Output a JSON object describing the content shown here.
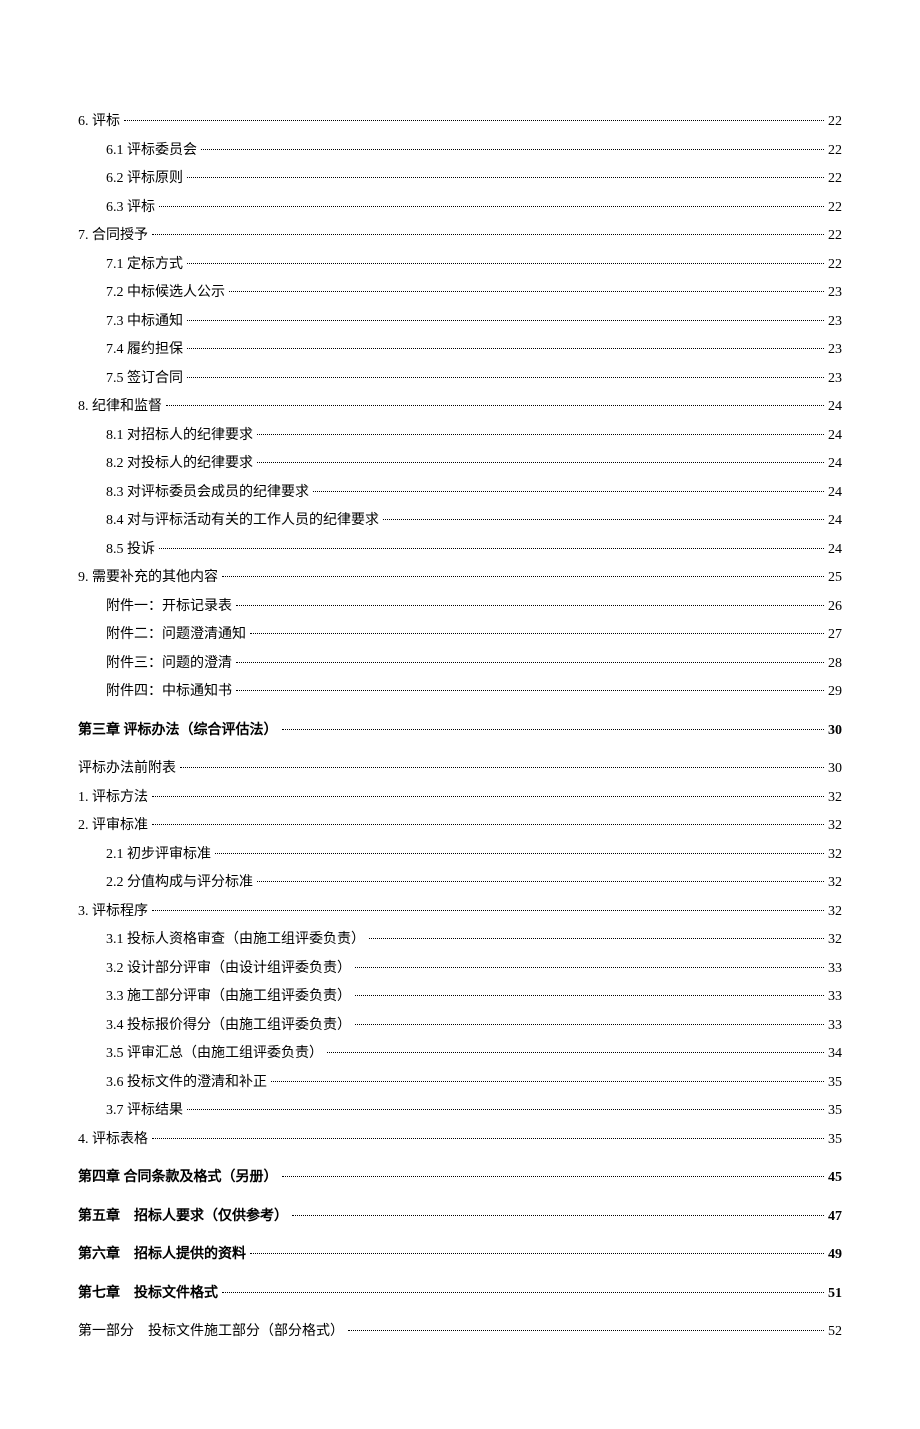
{
  "toc": [
    {
      "label": "6. 评标",
      "page": "22",
      "level": 0,
      "class": ""
    },
    {
      "label": "6.1 评标委员会",
      "page": "22",
      "level": 1,
      "class": ""
    },
    {
      "label": "6.2 评标原则",
      "page": "22",
      "level": 1,
      "class": ""
    },
    {
      "label": "6.3 评标",
      "page": "22",
      "level": 1,
      "class": ""
    },
    {
      "label": "7. 合同授予",
      "page": "22",
      "level": 0,
      "class": ""
    },
    {
      "label": "7.1 定标方式",
      "page": "22",
      "level": 1,
      "class": ""
    },
    {
      "label": "7.2 中标候选人公示",
      "page": "23",
      "level": 1,
      "class": ""
    },
    {
      "label": "7.3 中标通知",
      "page": "23",
      "level": 1,
      "class": ""
    },
    {
      "label": "7.4 履约担保",
      "page": "23",
      "level": 1,
      "class": ""
    },
    {
      "label": "7.5 签订合同",
      "page": "23",
      "level": 1,
      "class": ""
    },
    {
      "label": "8. 纪律和监督",
      "page": "24",
      "level": 0,
      "class": ""
    },
    {
      "label": "8.1 对招标人的纪律要求",
      "page": "24",
      "level": 1,
      "class": ""
    },
    {
      "label": "8.2 对投标人的纪律要求",
      "page": "24",
      "level": 1,
      "class": ""
    },
    {
      "label": "8.3 对评标委员会成员的纪律要求",
      "page": "24",
      "level": 1,
      "class": ""
    },
    {
      "label": "8.4 对与评标活动有关的工作人员的纪律要求",
      "page": "24",
      "level": 1,
      "class": ""
    },
    {
      "label": "8.5 投诉",
      "page": "24",
      "level": 1,
      "class": ""
    },
    {
      "label": "9. 需要补充的其他内容",
      "page": "25",
      "level": 0,
      "class": ""
    },
    {
      "label": "附件一：开标记录表",
      "page": "26",
      "level": 1,
      "class": ""
    },
    {
      "label": "附件二：问题澄清通知",
      "page": "27",
      "level": 1,
      "class": ""
    },
    {
      "label": "附件三：问题的澄清",
      "page": "28",
      "level": 1,
      "class": ""
    },
    {
      "label": "附件四：中标通知书",
      "page": "29",
      "level": 1,
      "class": ""
    },
    {
      "label": "第三章 评标办法（综合评估法）",
      "page": "30",
      "level": 0,
      "class": "chapter"
    },
    {
      "label": "评标办法前附表",
      "page": "30",
      "level": 0,
      "class": "sub-section"
    },
    {
      "label": "1. 评标方法",
      "page": "32",
      "level": 0,
      "class": ""
    },
    {
      "label": "2. 评审标准",
      "page": "32",
      "level": 0,
      "class": ""
    },
    {
      "label": "2.1 初步评审标准",
      "page": "32",
      "level": 1,
      "class": ""
    },
    {
      "label": "2.2 分值构成与评分标准",
      "page": "32",
      "level": 1,
      "class": ""
    },
    {
      "label": "3. 评标程序",
      "page": "32",
      "level": 0,
      "class": ""
    },
    {
      "label": "3.1 投标人资格审查（由施工组评委负责）",
      "page": "32",
      "level": 1,
      "class": ""
    },
    {
      "label": "3.2 设计部分评审（由设计组评委负责）",
      "page": "33",
      "level": 1,
      "class": ""
    },
    {
      "label": "3.3 施工部分评审（由施工组评委负责）",
      "page": "33",
      "level": 1,
      "class": ""
    },
    {
      "label": "3.4 投标报价得分（由施工组评委负责）",
      "page": "33",
      "level": 1,
      "class": ""
    },
    {
      "label": "3.5 评审汇总（由施工组评委负责）",
      "page": "34",
      "level": 1,
      "class": ""
    },
    {
      "label": "3.6 投标文件的澄清和补正",
      "page": "35",
      "level": 1,
      "class": ""
    },
    {
      "label": "3.7 评标结果",
      "page": "35",
      "level": 1,
      "class": ""
    },
    {
      "label": "4. 评标表格",
      "page": "35",
      "level": 0,
      "class": ""
    },
    {
      "label": "第四章 合同条款及格式（另册）",
      "page": "45",
      "level": 0,
      "class": "chapter"
    },
    {
      "label": "第五章　招标人要求（仅供参考）",
      "page": "47",
      "level": 0,
      "class": "chapter"
    },
    {
      "label": "第六章　招标人提供的资料",
      "page": "49",
      "level": 0,
      "class": "chapter"
    },
    {
      "label": "第七章　投标文件格式",
      "page": "51",
      "level": 0,
      "class": "chapter"
    },
    {
      "label": "第一部分　投标文件施工部分（部分格式）",
      "page": "52",
      "level": 0,
      "class": "sub-section"
    }
  ]
}
